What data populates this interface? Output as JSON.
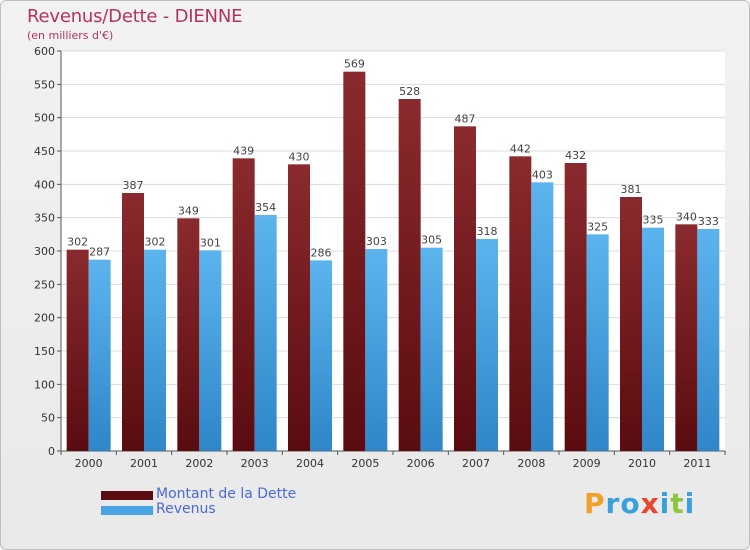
{
  "chart_data": {
    "type": "bar",
    "title": "Revenus/Dette - DIENNE",
    "subtitle": "(en milliers d'€)",
    "categories": [
      "2000",
      "2001",
      "2002",
      "2003",
      "2004",
      "2005",
      "2006",
      "2007",
      "2008",
      "2009",
      "2010",
      "2011"
    ],
    "series": [
      {
        "name": "Montant de la Dette",
        "color": "#7a1e22",
        "values": [
          302,
          387,
          349,
          439,
          430,
          569,
          528,
          487,
          442,
          432,
          381,
          340
        ]
      },
      {
        "name": "Revenus",
        "color": "#4aa3e4",
        "values": [
          287,
          302,
          301,
          354,
          286,
          303,
          305,
          318,
          403,
          325,
          335,
          333
        ]
      }
    ],
    "ylim": [
      0,
      600
    ],
    "yticks": [
      0,
      50,
      100,
      150,
      200,
      250,
      300,
      350,
      400,
      450,
      500,
      550,
      600
    ],
    "grid": true,
    "legend": "bottom-left"
  },
  "logo": {
    "letters": [
      "P",
      "r",
      "o",
      "x",
      "i",
      "t",
      "i"
    ],
    "colors": [
      "#f0a12a",
      "#3aa0dc",
      "#3aa0dc",
      "#e8462c",
      "#3aa0dc",
      "#8cc63f",
      "#3aa0dc"
    ]
  }
}
